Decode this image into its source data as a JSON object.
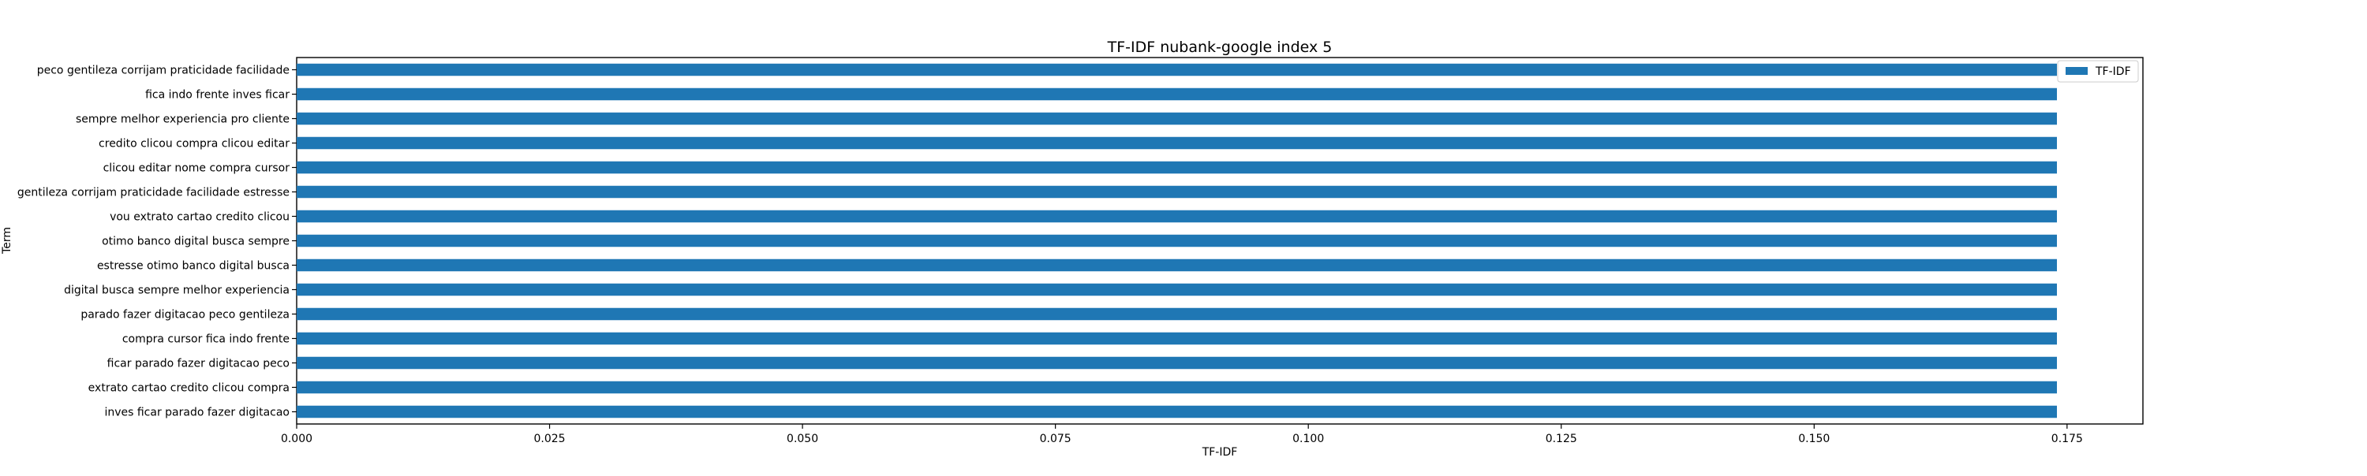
{
  "chart_data": {
    "type": "bar",
    "orientation": "horizontal",
    "title": "TF-IDF nubank-google index 5",
    "xlabel": "TF-IDF",
    "ylabel": "Term",
    "xlim": [
      0,
      0.1825
    ],
    "xticks": [
      0.0,
      0.025,
      0.05,
      0.075,
      0.1,
      0.125,
      0.15,
      0.175
    ],
    "xtick_labels": [
      "0.000",
      "0.025",
      "0.050",
      "0.075",
      "0.100",
      "0.125",
      "0.150",
      "0.175"
    ],
    "grid": false,
    "legend": {
      "position": "top-right",
      "entries": [
        "TF-IDF"
      ]
    },
    "bar_color": "#1f77b4",
    "categories": [
      "peco gentileza corrijam praticidade facilidade",
      "fica indo frente inves ficar",
      "sempre melhor experiencia pro cliente",
      "credito clicou compra clicou editar",
      "clicou editar nome compra cursor",
      "gentileza corrijam praticidade facilidade estresse",
      "vou extrato cartao credito clicou",
      "otimo banco digital busca sempre",
      "estresse otimo banco digital busca",
      "digital busca sempre melhor experiencia",
      "parado fazer digitacao peco gentileza",
      "compra cursor fica indo frente",
      "ficar parado fazer digitacao peco",
      "extrato cartao credito clicou compra",
      "inves ficar parado fazer digitacao"
    ],
    "series": [
      {
        "name": "TF-IDF",
        "values": [
          0.174,
          0.174,
          0.174,
          0.174,
          0.174,
          0.174,
          0.174,
          0.174,
          0.174,
          0.174,
          0.174,
          0.174,
          0.174,
          0.174,
          0.174
        ]
      }
    ]
  }
}
